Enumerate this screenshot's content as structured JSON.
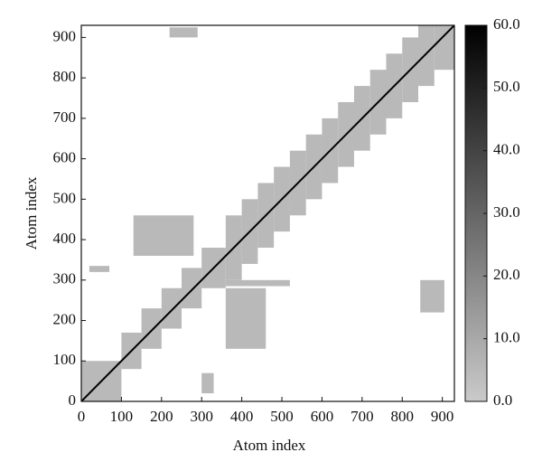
{
  "chart_data": {
    "type": "heatmap",
    "x_label": "Atom index",
    "y_label": "Atom index",
    "xlim": [
      0,
      930
    ],
    "ylim": [
      0,
      930
    ],
    "xticks": [
      0,
      100,
      200,
      300,
      400,
      500,
      600,
      700,
      800,
      900
    ],
    "yticks": [
      0,
      100,
      200,
      300,
      400,
      500,
      600,
      700,
      800,
      900
    ],
    "color_range": [
      0,
      60
    ],
    "color_low": "#cacaca",
    "color_high": "#000000",
    "colorbar_ticks": [
      {
        "value": 0,
        "label": "0.0"
      },
      {
        "value": 10,
        "label": "10.0"
      },
      {
        "value": 20,
        "label": "20.0"
      },
      {
        "value": 30,
        "label": "30.0"
      },
      {
        "value": 40,
        "label": "40.0"
      },
      {
        "value": 50,
        "label": "50.0"
      },
      {
        "value": 60,
        "label": "60.0"
      }
    ],
    "diagonal_value": 60,
    "cells": [
      {
        "x": [
          0,
          100
        ],
        "y": [
          0,
          100
        ],
        "value": 5
      },
      {
        "x": [
          100,
          150
        ],
        "y": [
          80,
          170
        ],
        "value": 5
      },
      {
        "x": [
          150,
          200
        ],
        "y": [
          130,
          230
        ],
        "value": 5
      },
      {
        "x": [
          200,
          250
        ],
        "y": [
          180,
          280
        ],
        "value": 5
      },
      {
        "x": [
          250,
          300
        ],
        "y": [
          230,
          330
        ],
        "value": 5
      },
      {
        "x": [
          300,
          360
        ],
        "y": [
          280,
          380
        ],
        "value": 5
      },
      {
        "x": [
          360,
          400
        ],
        "y": [
          300,
          460
        ],
        "value": 5
      },
      {
        "x": [
          400,
          440
        ],
        "y": [
          340,
          500
        ],
        "value": 5
      },
      {
        "x": [
          440,
          480
        ],
        "y": [
          380,
          540
        ],
        "value": 5
      },
      {
        "x": [
          480,
          520
        ],
        "y": [
          420,
          580
        ],
        "value": 5
      },
      {
        "x": [
          520,
          560
        ],
        "y": [
          460,
          620
        ],
        "value": 5
      },
      {
        "x": [
          560,
          600
        ],
        "y": [
          500,
          660
        ],
        "value": 5
      },
      {
        "x": [
          600,
          640
        ],
        "y": [
          540,
          700
        ],
        "value": 5
      },
      {
        "x": [
          640,
          680
        ],
        "y": [
          580,
          740
        ],
        "value": 5
      },
      {
        "x": [
          680,
          720
        ],
        "y": [
          620,
          780
        ],
        "value": 5
      },
      {
        "x": [
          720,
          760
        ],
        "y": [
          660,
          820
        ],
        "value": 5
      },
      {
        "x": [
          760,
          800
        ],
        "y": [
          700,
          860
        ],
        "value": 5
      },
      {
        "x": [
          800,
          840
        ],
        "y": [
          740,
          900
        ],
        "value": 5
      },
      {
        "x": [
          840,
          880
        ],
        "y": [
          780,
          930
        ],
        "value": 5
      },
      {
        "x": [
          880,
          930
        ],
        "y": [
          820,
          930
        ],
        "value": 5
      },
      {
        "x": [
          130,
          280
        ],
        "y": [
          360,
          460
        ],
        "value": 5
      },
      {
        "x": [
          360,
          460
        ],
        "y": [
          130,
          280
        ],
        "value": 5
      },
      {
        "x": [
          360,
          520
        ],
        "y": [
          285,
          300
        ],
        "value": 5
      },
      {
        "x": [
          20,
          70
        ],
        "y": [
          320,
          335
        ],
        "value": 5
      },
      {
        "x": [
          300,
          330
        ],
        "y": [
          20,
          70
        ],
        "value": 5
      },
      {
        "x": [
          220,
          290
        ],
        "y": [
          900,
          925
        ],
        "value": 5
      },
      {
        "x": [
          845,
          905
        ],
        "y": [
          220,
          300
        ],
        "value": 5
      }
    ]
  }
}
